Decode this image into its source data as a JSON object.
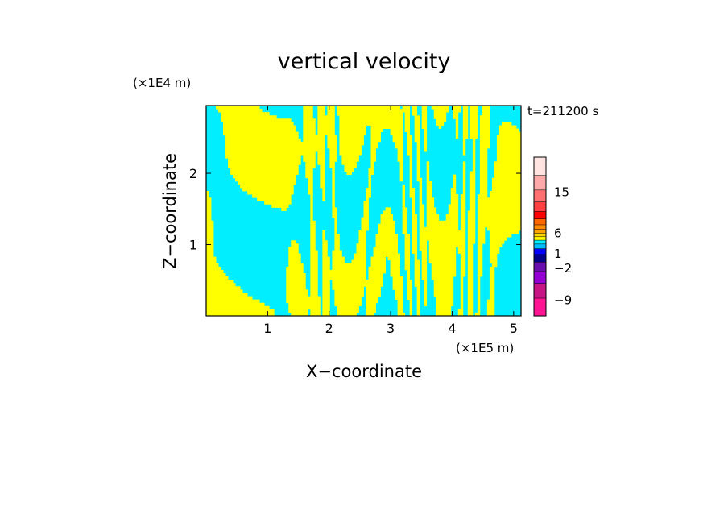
{
  "chart_data": {
    "type": "heatmap",
    "title": "vertical velocity",
    "xlabel": "X−coordinate",
    "ylabel": "Z−coordinate",
    "x_unit": "(×1E5 m)",
    "y_unit": "(×1E4 m)",
    "time_label": "t=211200 s",
    "xlim": [
      0,
      5.12
    ],
    "ylim": [
      0,
      2.95
    ],
    "x_ticks": [
      "1",
      "2",
      "3",
      "4",
      "5"
    ],
    "y_ticks": [
      "1",
      "2"
    ],
    "field_colors": {
      "positive": "#ffff00",
      "negative": "#00eeff"
    },
    "colorbar": {
      "levels": [
        {
          "color": "#ff1493"
        },
        {
          "color": "#c71585"
        },
        {
          "color": "#9400d3"
        },
        {
          "color": "#6a0dad"
        },
        {
          "color": "#00008b"
        },
        {
          "color": "#0000ff"
        },
        {
          "color": "#00bfff"
        },
        {
          "color": "#00eeff"
        },
        {
          "color": "#ffff00"
        },
        {
          "color": "#ffd700"
        },
        {
          "color": "#ffa500"
        },
        {
          "color": "#ff8c00"
        },
        {
          "color": "#ff6600"
        },
        {
          "color": "#ff0000"
        },
        {
          "color": "#ff4040"
        },
        {
          "color": "#ff7070"
        },
        {
          "color": "#ffaaaa"
        },
        {
          "color": "#ffe4e1"
        }
      ],
      "tick_labels": [
        "15",
        "6",
        "1",
        "−2",
        "−9"
      ],
      "tick_values": [
        15,
        6,
        1,
        -2,
        -9
      ]
    }
  }
}
